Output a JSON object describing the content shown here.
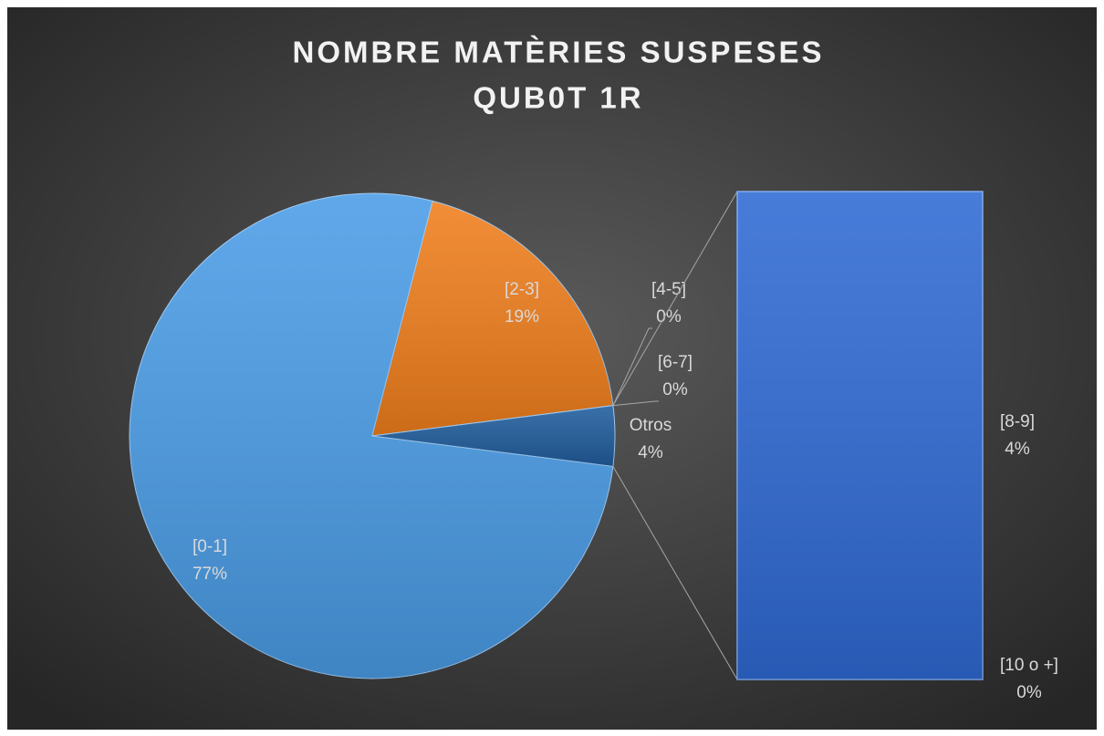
{
  "chart_data": {
    "type": "pie",
    "title": "NOMBRE  MATÈRIES  SUSPESES",
    "subtitle": "QUB0T  1R",
    "categories": [
      "[0-1]",
      "[2-3]",
      "[4-5]",
      "[6-7]",
      "Otros"
    ],
    "values": [
      77,
      19,
      0,
      0,
      4
    ],
    "value_labels": [
      "77%",
      "19%",
      "0%",
      "0%",
      "4%"
    ],
    "colors": [
      "#4a9ce6",
      "#f07e1c",
      "#6a9e3c",
      "#8a5fb0",
      "#1f5c9c"
    ],
    "bar_of_pie": {
      "categories": [
        "[8-9]",
        "[10 o +]"
      ],
      "values": [
        4,
        0
      ],
      "value_labels": [
        "4%",
        "0%"
      ],
      "colors": [
        "#2f6ad4",
        "#3d8a3d"
      ]
    }
  }
}
